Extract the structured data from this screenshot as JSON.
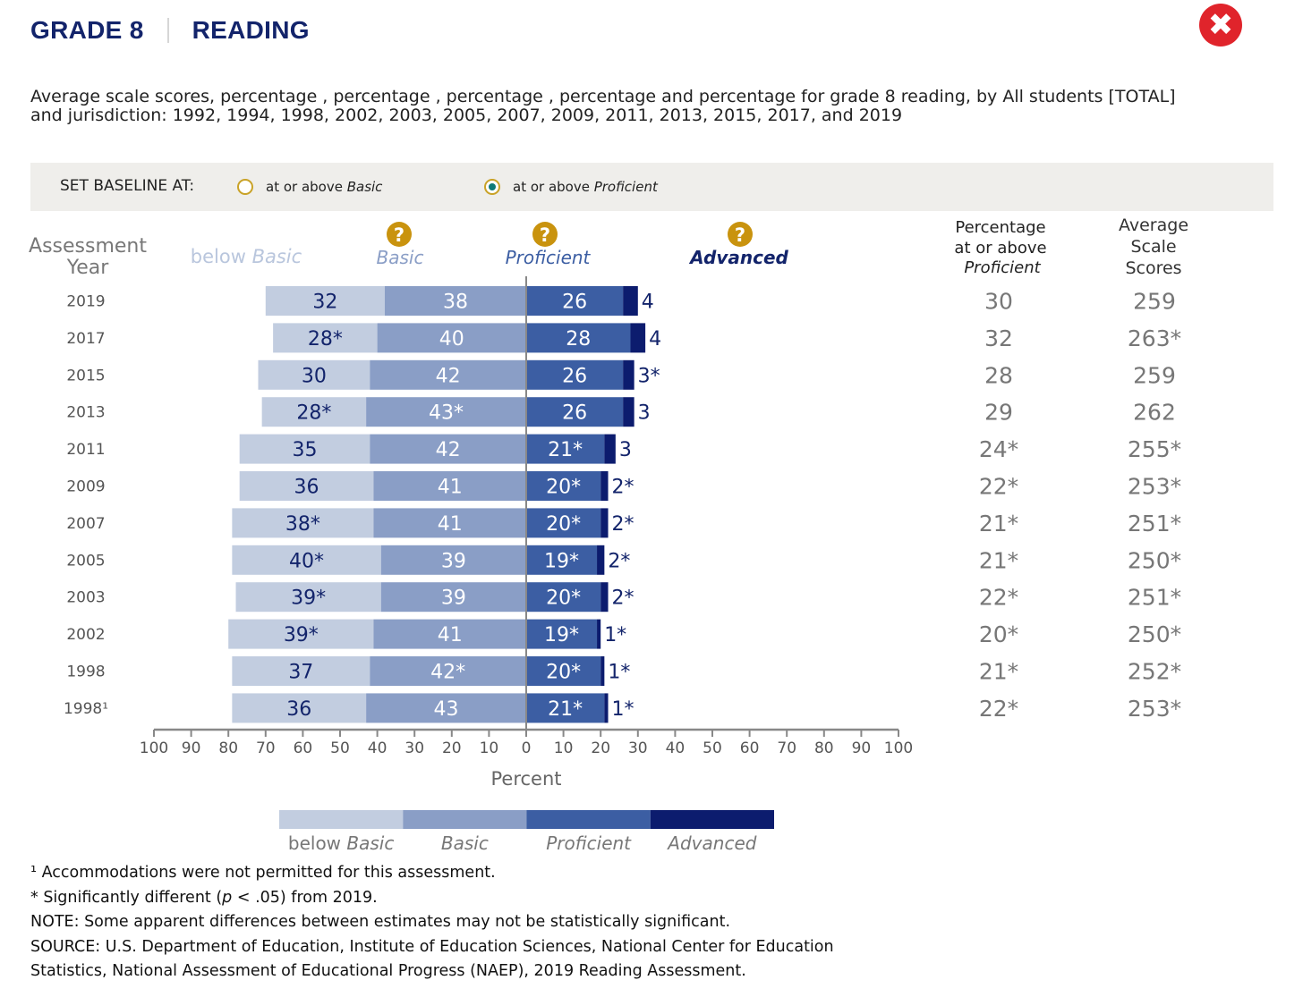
{
  "header": {
    "grade": "GRADE 8",
    "subject": "READING"
  },
  "subtitle": "Average scale scores, percentage , percentage , percentage , percentage and percentage for grade 8 reading, by All students [TOTAL] and jurisdiction: 1992, 1994, 1998, 2002, 2003, 2005, 2007, 2009, 2011, 2013, 2015, 2017, and 2019",
  "baseline": {
    "label": "SET BASELINE AT:",
    "options": [
      {
        "prefix": "at or above ",
        "level": "Basic",
        "selected": false
      },
      {
        "prefix": "at or above ",
        "level": "Proficient",
        "selected": true
      }
    ]
  },
  "columns": {
    "year": [
      "Assessment",
      "Year"
    ],
    "below_basic": [
      "below ",
      "Basic"
    ],
    "basic": "Basic",
    "proficient": "Proficient",
    "advanced": "Advanced",
    "pct": [
      "Percentage",
      "at or above",
      "Proficient"
    ],
    "avg": [
      "Average",
      "Scale",
      "Scores"
    ],
    "help_glyph": "?"
  },
  "colors": {
    "below_basic": "#c2cde0",
    "basic": "#8a9ec6",
    "proficient": "#3c5ea3",
    "advanced": "#0c1c6e",
    "label_dark": "#13246b",
    "label_light": "#ffffff",
    "help_icon": "#c9930e",
    "accent": "#0f7a78"
  },
  "chart_data": {
    "type": "bar",
    "subtype": "diverging-stacked",
    "baseline": "at or above Proficient",
    "categories": [
      "2019",
      "2017",
      "2015",
      "2013",
      "2011",
      "2009",
      "2007",
      "2005",
      "2003",
      "2002",
      "1998",
      "1998¹"
    ],
    "series": [
      {
        "name": "below Basic",
        "values": [
          32,
          28,
          30,
          28,
          35,
          36,
          38,
          40,
          39,
          39,
          37,
          36
        ],
        "labels": [
          "32",
          "28*",
          "30",
          "28*",
          "35",
          "36",
          "38*",
          "40*",
          "39*",
          "39*",
          "37",
          "36"
        ]
      },
      {
        "name": "Basic",
        "values": [
          38,
          40,
          42,
          43,
          42,
          41,
          41,
          39,
          39,
          41,
          42,
          43
        ],
        "labels": [
          "38",
          "40",
          "42",
          "43*",
          "42",
          "41",
          "41",
          "39",
          "39",
          "41",
          "42*",
          "43"
        ]
      },
      {
        "name": "Proficient",
        "values": [
          26,
          28,
          26,
          26,
          21,
          20,
          20,
          19,
          20,
          19,
          20,
          21
        ],
        "labels": [
          "26",
          "28",
          "26",
          "26",
          "21*",
          "20*",
          "20*",
          "19*",
          "20*",
          "19*",
          "20*",
          "21*"
        ]
      },
      {
        "name": "Advanced",
        "values": [
          4,
          4,
          3,
          3,
          3,
          2,
          2,
          2,
          2,
          1,
          1,
          1
        ],
        "labels": [
          "4",
          "4",
          "3*",
          "3",
          "3",
          "2*",
          "2*",
          "2*",
          "2*",
          "1*",
          "1*",
          "1*"
        ]
      }
    ],
    "pct_at_or_above_proficient": [
      "30",
      "32",
      "28",
      "29",
      "24*",
      "22*",
      "21*",
      "21*",
      "22*",
      "20*",
      "21*",
      "22*"
    ],
    "average_scale_scores": [
      "259",
      "263*",
      "259",
      "262",
      "255*",
      "253*",
      "251*",
      "250*",
      "251*",
      "250*",
      "252*",
      "253*"
    ],
    "xlabel": "Percent",
    "xlim": [
      -100,
      100
    ],
    "xticks": [
      100,
      90,
      80,
      70,
      60,
      50,
      40,
      30,
      20,
      10,
      0,
      10,
      20,
      30,
      40,
      50,
      60,
      70,
      80,
      90,
      100
    ],
    "legend_position": "bottom",
    "legend": [
      "below Basic",
      "Basic",
      "Proficient",
      "Advanced"
    ]
  },
  "footnotes": {
    "note1": "¹ Accommodations were not permitted for this assessment.",
    "note2_a": "* Significantly different (",
    "note2_p": "p",
    "note2_b": " < .05) from 2019.",
    "note3": "NOTE: Some apparent differences between estimates may not be statistically significant.",
    "note4": "SOURCE: U.S. Department of Education, Institute of Education Sciences, National Center for Education",
    "note5": "Statistics, National Assessment of Educational Progress (NAEP), 2019 Reading Assessment."
  }
}
